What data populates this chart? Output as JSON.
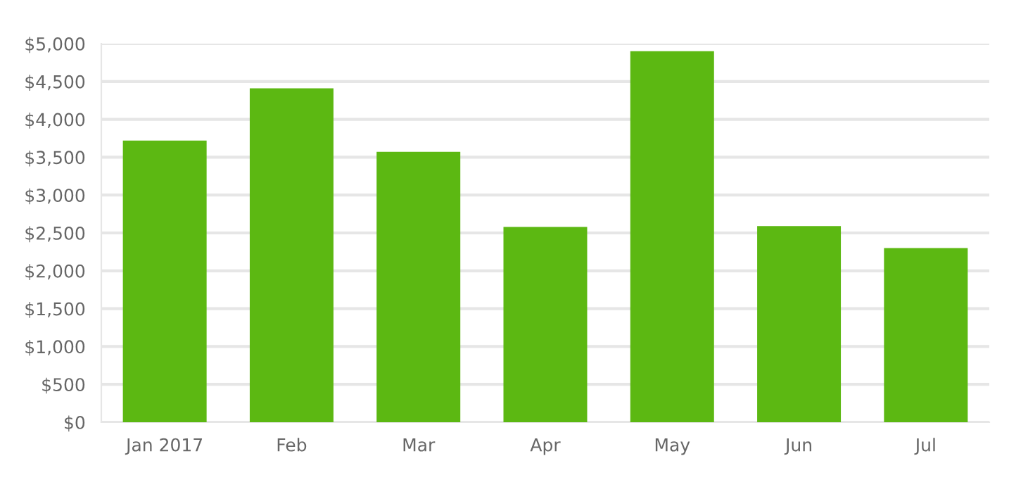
{
  "chart_data": {
    "type": "bar",
    "categories": [
      "Jan 2017",
      "Feb",
      "Mar",
      "Apr",
      "May",
      "Jun",
      "Jul"
    ],
    "values": [
      3720,
      4410,
      3570,
      2580,
      4900,
      2590,
      2300
    ],
    "color": "#5cb812",
    "ylim": [
      0,
      5000
    ],
    "yticks": [
      {
        "value": 0,
        "label": "$0"
      },
      {
        "value": 500,
        "label": "$500"
      },
      {
        "value": 1000,
        "label": "$1,000"
      },
      {
        "value": 1500,
        "label": "$1,500"
      },
      {
        "value": 2000,
        "label": "$2,000"
      },
      {
        "value": 2500,
        "label": "$2,500"
      },
      {
        "value": 3000,
        "label": "$3,000"
      },
      {
        "value": 3500,
        "label": "$3,500"
      },
      {
        "value": 4000,
        "label": "$4,000"
      },
      {
        "value": 4500,
        "label": "$4,500"
      },
      {
        "value": 5000,
        "label": "$5,000"
      }
    ],
    "grid": "y",
    "legend": false
  }
}
